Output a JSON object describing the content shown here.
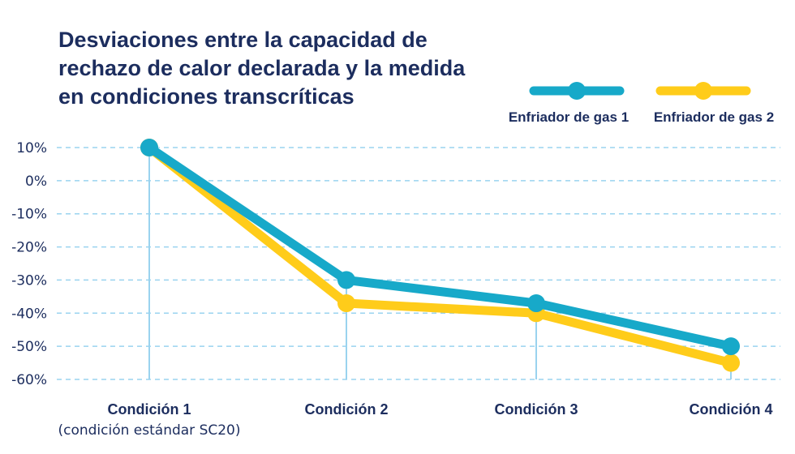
{
  "chart_data": {
    "type": "line",
    "title": "Desviaciones entre la capacidad de rechazo de calor declarada y la medida en condiciones transcríticas",
    "categories": [
      "Condición 1",
      "Condición 2",
      "Condición 3",
      "Condición 4"
    ],
    "category_sublabels": [
      "(condición estándar SC20)",
      "",
      "",
      ""
    ],
    "y_tick_labels": [
      "10%",
      "0%",
      "-10%",
      "-20%",
      "-30%",
      "-40%",
      "-50%",
      "-60%"
    ],
    "y_ticks": [
      10,
      0,
      -10,
      -20,
      -30,
      -40,
      -50,
      -60
    ],
    "ylim": [
      -60,
      10
    ],
    "ylabel": "",
    "xlabel": "",
    "grid": true,
    "legend_position": "top-right",
    "series": [
      {
        "name": "Enfriador de gas 1",
        "color": "#17a9c9",
        "values": [
          10,
          -30,
          -37,
          -50
        ]
      },
      {
        "name": "Enfriador de gas 2",
        "color": "#ffcc1a",
        "values": [
          10,
          -37,
          -40,
          -55
        ]
      }
    ]
  },
  "colors": {
    "title": "#1c2d5e",
    "grid": "#9ad3ef",
    "drop_lines": "#9ad3ef"
  }
}
